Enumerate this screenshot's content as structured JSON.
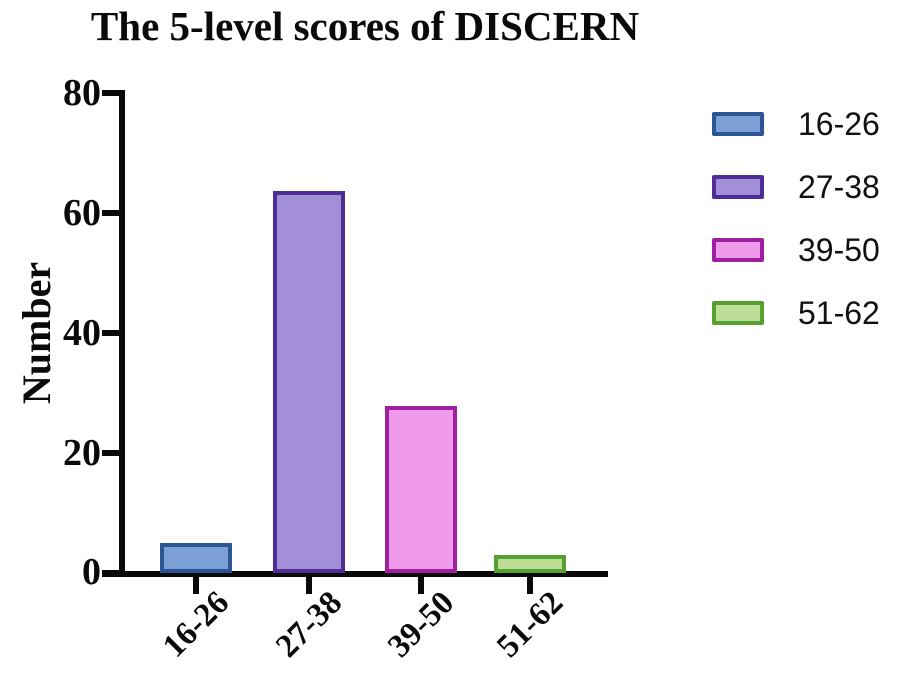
{
  "chart_data": {
    "type": "bar",
    "title": "The 5-level scores of DISCERN",
    "xlabel": "",
    "ylabel": "Number",
    "categories": [
      "16-26",
      "27-38",
      "39-50",
      "51-62"
    ],
    "values": [
      5,
      64,
      28,
      3
    ],
    "ylim": [
      0,
      80
    ],
    "yticks": [
      0,
      20,
      40,
      60,
      80
    ],
    "grid": false,
    "legend": {
      "position": "right",
      "labels": [
        "16-26",
        "27-38",
        "39-50",
        "51-62"
      ]
    },
    "colors": [
      {
        "fill": "#7CA0D6",
        "border": "#2B5593"
      },
      {
        "fill": "#A28FD7",
        "border": "#4E2D96"
      },
      {
        "fill": "#F09AEB",
        "border": "#9E1FA0"
      },
      {
        "fill": "#BDDE96",
        "border": "#55A02E"
      }
    ],
    "axis_color": "#0a0a0a",
    "background": "#ffffff"
  }
}
